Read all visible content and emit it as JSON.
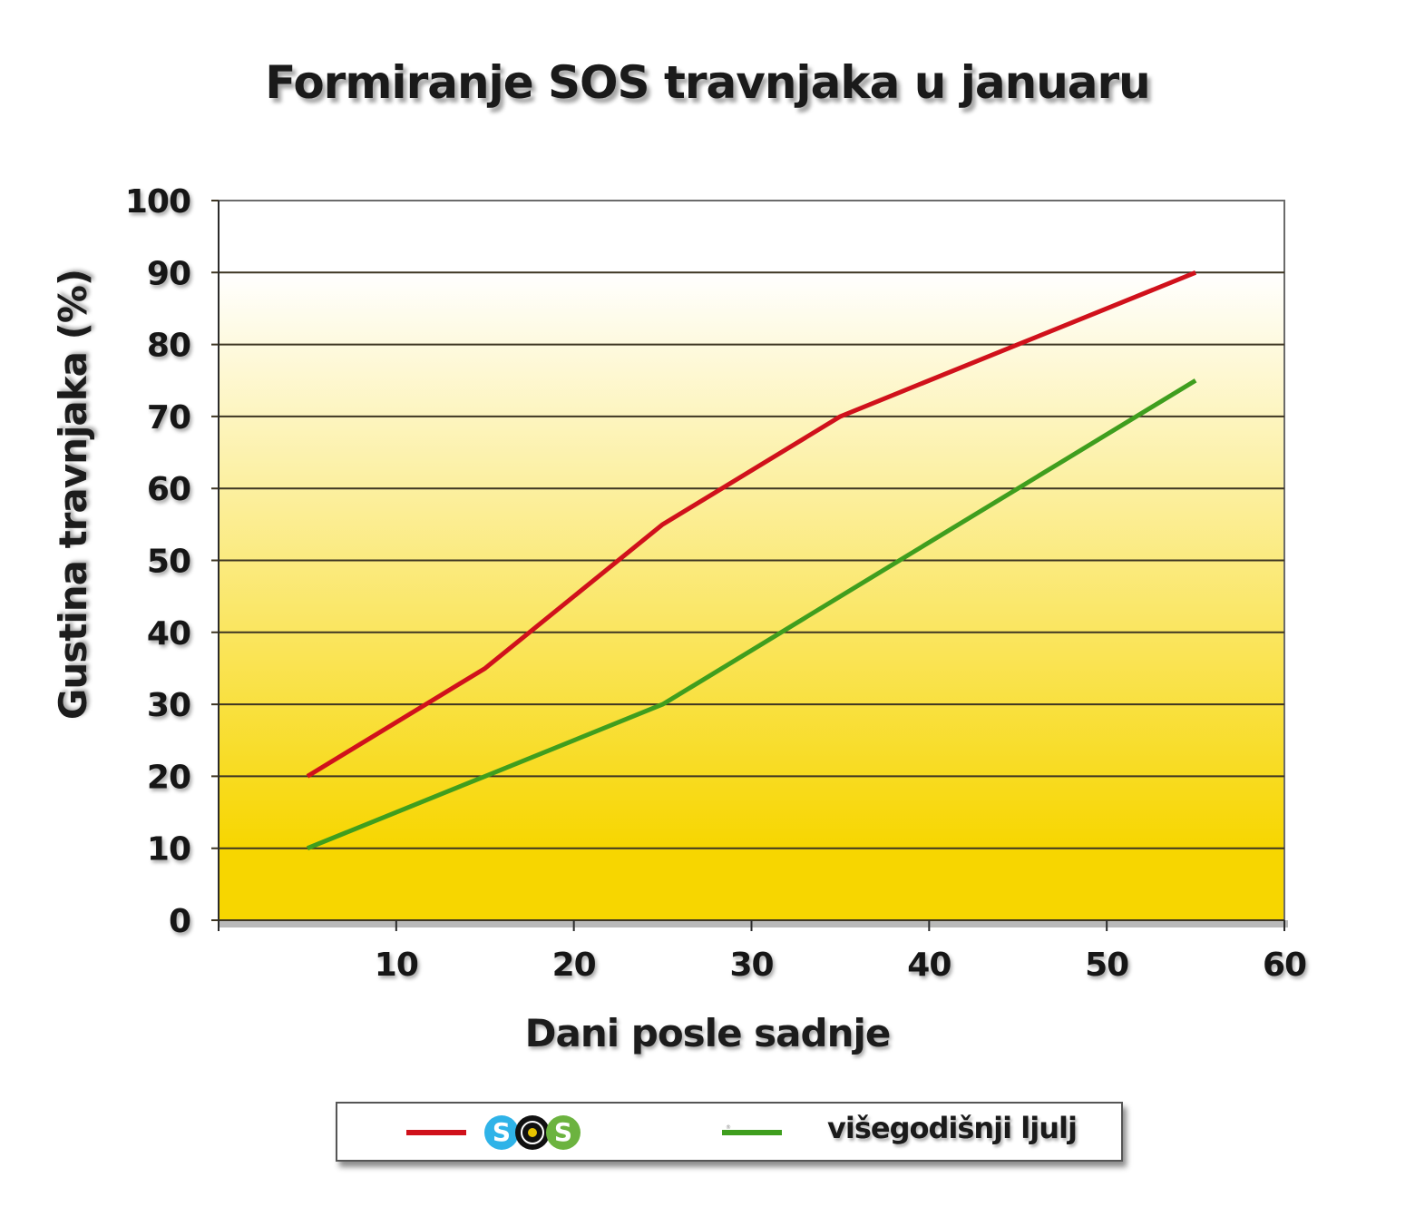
{
  "chart_data": {
    "type": "line",
    "title": "Formiranje SOS travnjaka u januaru",
    "xlabel": "Dani posle sadnje",
    "ylabel": "Gustina travnjaka (%)",
    "xlim": [
      0,
      60
    ],
    "ylim": [
      0,
      100
    ],
    "x_ticks": [
      10,
      20,
      30,
      40,
      50,
      60
    ],
    "y_ticks": [
      0,
      10,
      20,
      30,
      40,
      50,
      60,
      70,
      80,
      90,
      100
    ],
    "grid": true,
    "legend_position": "bottom",
    "x": [
      5,
      15,
      25,
      35,
      45,
      55
    ],
    "series": [
      {
        "name": "SOS",
        "color": "#d0111b",
        "values": [
          20,
          35,
          55,
          70,
          80,
          90
        ]
      },
      {
        "name": "višegodišnji ljulj",
        "color": "#3f9e1e",
        "values": [
          10,
          20,
          30,
          45,
          60,
          75
        ]
      }
    ],
    "background_gradient": {
      "top": "#ffffff",
      "bottom": "#f7d600"
    }
  },
  "legend": {
    "items": [
      {
        "label": "SOS",
        "logo_letters": [
          "S",
          "O",
          "S"
        ],
        "logo_colors": [
          "#2fb3e8",
          "#111111",
          "#6cb33f"
        ],
        "color": "#d0111b"
      },
      {
        "label": "višegodišnji ljulj",
        "color": "#3f9e1e"
      }
    ]
  }
}
